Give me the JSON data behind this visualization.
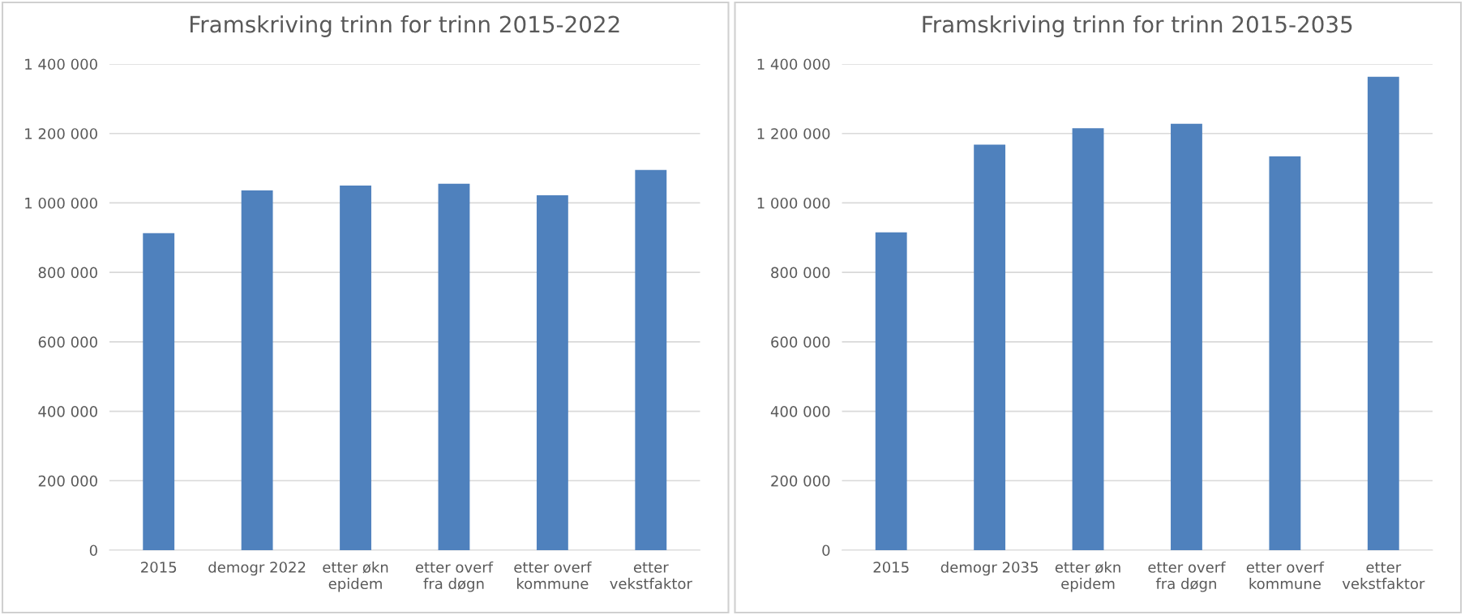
{
  "chart_data": [
    {
      "type": "bar",
      "title": "Framskriving trinn for trinn 2015-2022",
      "categories": [
        "2015",
        "demogr 2022",
        "etter økn\nepidem",
        "etter overf\nfra døgn",
        "etter overf\nkommune",
        "etter\nvekstfaktor"
      ],
      "values": [
        913000,
        1036000,
        1050000,
        1055000,
        1022000,
        1095000
      ],
      "color": "#4f81bd",
      "ylim": [
        0,
        1400000
      ],
      "yticks": [
        {
          "value": 0,
          "label": "0"
        },
        {
          "value": 200000,
          "label": "200 000"
        },
        {
          "value": 400000,
          "label": "400 000"
        },
        {
          "value": 600000,
          "label": "600 000"
        },
        {
          "value": 800000,
          "label": "800 000"
        },
        {
          "value": 1000000,
          "label": "1 000 000"
        },
        {
          "value": 1200000,
          "label": "1 200 000"
        },
        {
          "value": 1400000,
          "label": "1 400 000"
        }
      ],
      "grid": "y",
      "legend": false
    },
    {
      "type": "bar",
      "title": "Framskriving trinn for trinn 2015-2035",
      "categories": [
        "2015",
        "demogr 2035",
        "etter økn\nepidem",
        "etter overf\nfra døgn",
        "etter overf\nkommune",
        "etter\nvekstfaktor"
      ],
      "values": [
        915000,
        1168000,
        1215000,
        1228000,
        1134000,
        1363000
      ],
      "color": "#4f81bd",
      "ylim": [
        0,
        1400000
      ],
      "yticks": [
        {
          "value": 0,
          "label": "0"
        },
        {
          "value": 200000,
          "label": "200 000"
        },
        {
          "value": 400000,
          "label": "400 000"
        },
        {
          "value": 600000,
          "label": "600 000"
        },
        {
          "value": 800000,
          "label": "800 000"
        },
        {
          "value": 1000000,
          "label": "1 000 000"
        },
        {
          "value": 1200000,
          "label": "1 200 000"
        },
        {
          "value": 1400000,
          "label": "1 400 000"
        }
      ],
      "grid": "y",
      "legend": false
    }
  ]
}
